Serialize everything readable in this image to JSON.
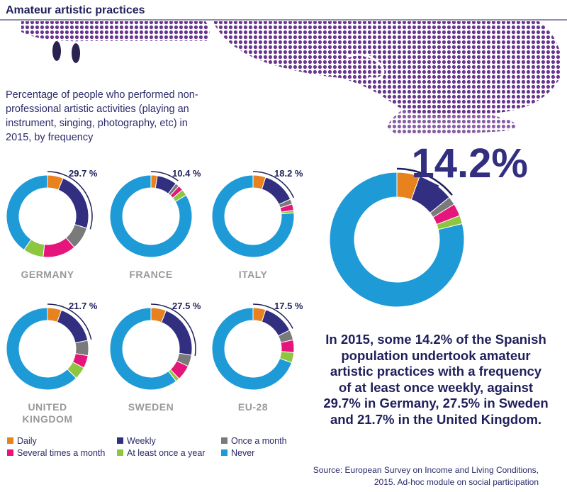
{
  "title": "Amateur artistic practices",
  "subtitle": "Percentage of people who performed non-professional artistic activities (playing an instrument, singing, photography, etc) in 2015, by frequency",
  "legend": {
    "items": [
      "Daily",
      "Weekly",
      "Once a month",
      "Several times a month",
      "At least once a year",
      "Never"
    ],
    "colors": [
      "#e8821e",
      "#332f80",
      "#7a7a7a",
      "#e6157b",
      "#8dc63f",
      "#1e9ad6"
    ]
  },
  "chart_data": [
    {
      "type": "donut",
      "title": "GERMANY",
      "highlight": "29.7 %",
      "values": [
        6.2,
        23.5,
        9,
        13,
        8,
        40.3
      ]
    },
    {
      "type": "donut",
      "title": "FRANCE",
      "highlight": "10.4 %",
      "values": [
        2.5,
        7.9,
        1.5,
        2,
        2.5,
        83.6
      ]
    },
    {
      "type": "donut",
      "title": "ITALY",
      "highlight": "18.2 %",
      "values": [
        5,
        13.2,
        2,
        2.5,
        1,
        76.3
      ]
    },
    {
      "type": "donut",
      "title": "UNITED KINGDOM",
      "highlight": "21.7 %",
      "values": [
        5.5,
        16.2,
        6,
        5,
        5,
        62.3
      ]
    },
    {
      "type": "donut",
      "title": "SWEDEN",
      "highlight": "27.5 %",
      "values": [
        6,
        21.5,
        4.5,
        6,
        1.5,
        60.5
      ]
    },
    {
      "type": "donut",
      "title": "EU-28",
      "highlight": "17.5 %",
      "values": [
        5,
        12.5,
        4,
        5,
        4,
        69.5
      ]
    },
    {
      "type": "donut",
      "title": "SPAIN",
      "highlight": "14.2%",
      "values": [
        5.5,
        8.7,
        2,
        3,
        2,
        78.8
      ]
    }
  ],
  "headline": "In 2015, some 14.2% of the Spanish population undertook amateur artistic practices with a frequency of at least once weekly, against 29.7% in Germany, 27.5% in Sweden and 21.7% in the United Kingdom.",
  "source": "Source: European Survey on Income and Living Conditions, 2015. Ad-hoc module on social participation"
}
